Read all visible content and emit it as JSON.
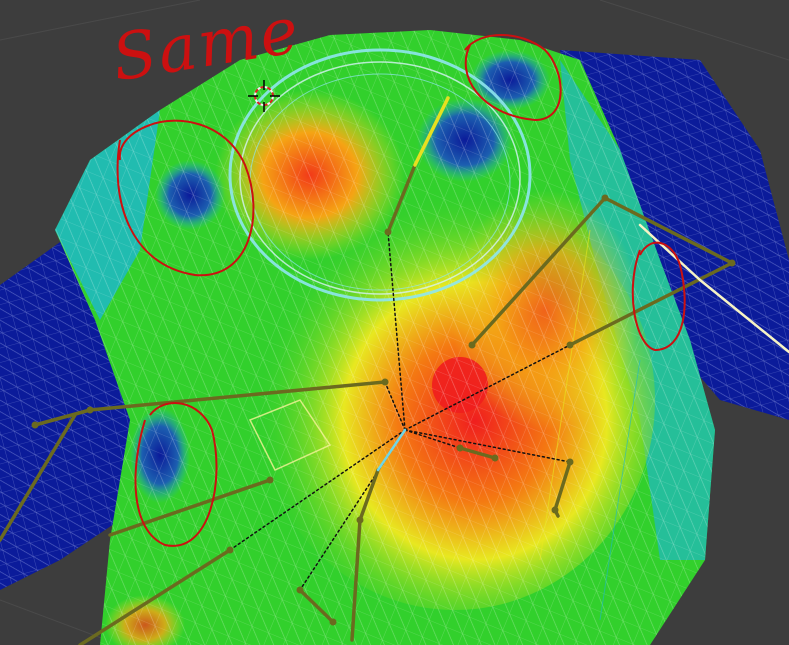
{
  "viewport": {
    "title": "",
    "background": "#3d3d3d",
    "mode": "weight-paint"
  },
  "annotations": {
    "label": "Same",
    "color": "#cc1010",
    "circles": [
      "collar-left",
      "collar-right",
      "shoulder-right",
      "underarm-left"
    ]
  },
  "weight_colors": {
    "zero": "#0b1b9a",
    "low": "#1fb8c8",
    "mid": "#32d02c",
    "high": "#e8e820",
    "max": "#f01e1e"
  },
  "armature": {
    "bone_color": "#6b6a1f",
    "selected_bone_color": "#e6e020",
    "relation_line": "dotted"
  }
}
